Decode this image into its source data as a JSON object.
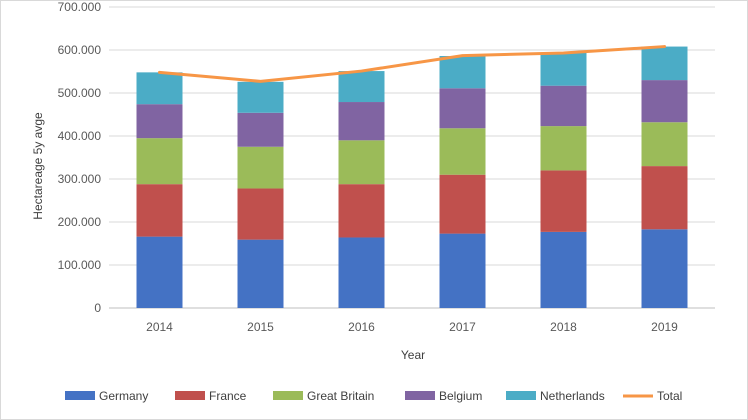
{
  "chart_data": {
    "type": "bar",
    "stacked": true,
    "title": "",
    "xlabel": "Year",
    "ylabel": "Hectareage 5y avge",
    "ylim": [
      0,
      700000
    ],
    "y_ticks": [
      "0",
      "100.000",
      "200.000",
      "300.000",
      "400.000",
      "500.000",
      "600.000",
      "700.000"
    ],
    "y_tick_values": [
      0,
      100000,
      200000,
      300000,
      400000,
      500000,
      600000,
      700000
    ],
    "categories": [
      "2014",
      "2015",
      "2016",
      "2017",
      "2018",
      "2019"
    ],
    "grid": true,
    "legend_position": "bottom",
    "series": [
      {
        "name": "Germany",
        "color": "#4472c4",
        "values": [
          166000,
          159000,
          164000,
          173000,
          177000,
          183000
        ]
      },
      {
        "name": "France",
        "color": "#c0504d",
        "values": [
          122000,
          119000,
          124000,
          137000,
          143000,
          147000
        ]
      },
      {
        "name": "Great Britain",
        "color": "#9bbb59",
        "values": [
          107000,
          97000,
          102000,
          108000,
          103000,
          102000
        ]
      },
      {
        "name": "Belgium",
        "color": "#8064a2",
        "values": [
          79000,
          79000,
          89000,
          93000,
          94000,
          98000
        ]
      },
      {
        "name": "Netherlands",
        "color": "#4bacc6",
        "values": [
          74000,
          72000,
          72000,
          75000,
          76000,
          78000
        ]
      }
    ],
    "line_series": {
      "name": "Total",
      "color": "#f79646",
      "values": [
        548000,
        527000,
        551000,
        587000,
        593000,
        608000
      ]
    }
  }
}
